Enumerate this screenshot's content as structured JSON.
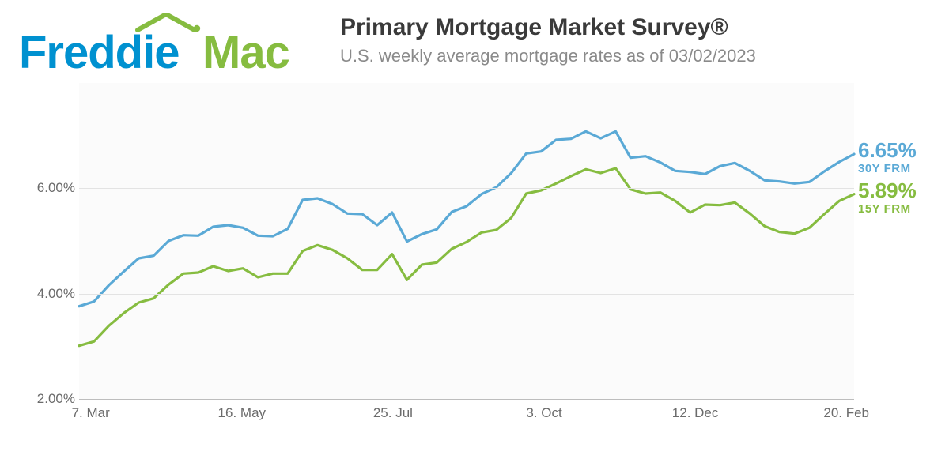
{
  "brand": {
    "name": "Freddie Mac",
    "word1": "Freddie",
    "word2": "Mac",
    "color1": "#0091d0",
    "color2": "#86bc40",
    "roof_color": "#86bc40"
  },
  "header": {
    "title": "Primary Mortgage Market Survey®",
    "subtitle": "U.S. weekly average mortgage rates as of 03/02/2023",
    "title_color": "#3a3a3a",
    "title_fontsize": 30,
    "subtitle_color": "#8a8a8a",
    "subtitle_fontsize": 22
  },
  "chart": {
    "type": "line",
    "background_color": "#fbfbfb",
    "grid_color": "#e3e3e3",
    "baseline_color": "#bdbdbd",
    "line_width": 3.2,
    "ylim": [
      2.0,
      8.0
    ],
    "yticks": [
      2.0,
      4.0,
      6.0
    ],
    "ytick_labels": [
      "2.00%",
      "4.00%",
      "6.00%"
    ],
    "xtick_labels": [
      "7. Mar",
      "16. May",
      "25. Jul",
      "3. Oct",
      "12. Dec",
      "20. Feb"
    ],
    "xtick_positions": [
      0.015,
      0.21,
      0.405,
      0.6,
      0.795,
      0.99
    ],
    "axis_label_color": "#6b6b6b",
    "axis_label_fontsize": 17,
    "series": [
      {
        "id": "frm30",
        "label": "30Y FRM",
        "end_value_label": "6.65%",
        "color": "#5aa9d6",
        "values": [
          3.76,
          3.85,
          4.16,
          4.42,
          4.67,
          4.72,
          5.0,
          5.11,
          5.1,
          5.27,
          5.3,
          5.25,
          5.1,
          5.09,
          5.23,
          5.78,
          5.81,
          5.7,
          5.52,
          5.51,
          5.3,
          5.54,
          4.99,
          5.13,
          5.22,
          5.55,
          5.66,
          5.89,
          6.02,
          6.29,
          6.66,
          6.7,
          6.92,
          6.94,
          7.08,
          6.95,
          7.08,
          6.58,
          6.61,
          6.49,
          6.33,
          6.31,
          6.27,
          6.42,
          6.48,
          6.33,
          6.15,
          6.13,
          6.09,
          6.12,
          6.32,
          6.5,
          6.65
        ]
      },
      {
        "id": "frm15",
        "label": "15Y FRM",
        "end_value_label": "5.89%",
        "color": "#86bc40",
        "values": [
          3.01,
          3.09,
          3.39,
          3.63,
          3.83,
          3.91,
          4.17,
          4.38,
          4.4,
          4.52,
          4.43,
          4.48,
          4.31,
          4.38,
          4.38,
          4.81,
          4.92,
          4.83,
          4.67,
          4.45,
          4.45,
          4.75,
          4.26,
          4.55,
          4.59,
          4.85,
          4.98,
          5.16,
          5.21,
          5.44,
          5.9,
          5.96,
          6.09,
          6.23,
          6.36,
          6.29,
          6.38,
          5.98,
          5.9,
          5.92,
          5.76,
          5.54,
          5.69,
          5.68,
          5.73,
          5.52,
          5.28,
          5.17,
          5.14,
          5.25,
          5.51,
          5.76,
          5.89
        ]
      }
    ]
  }
}
